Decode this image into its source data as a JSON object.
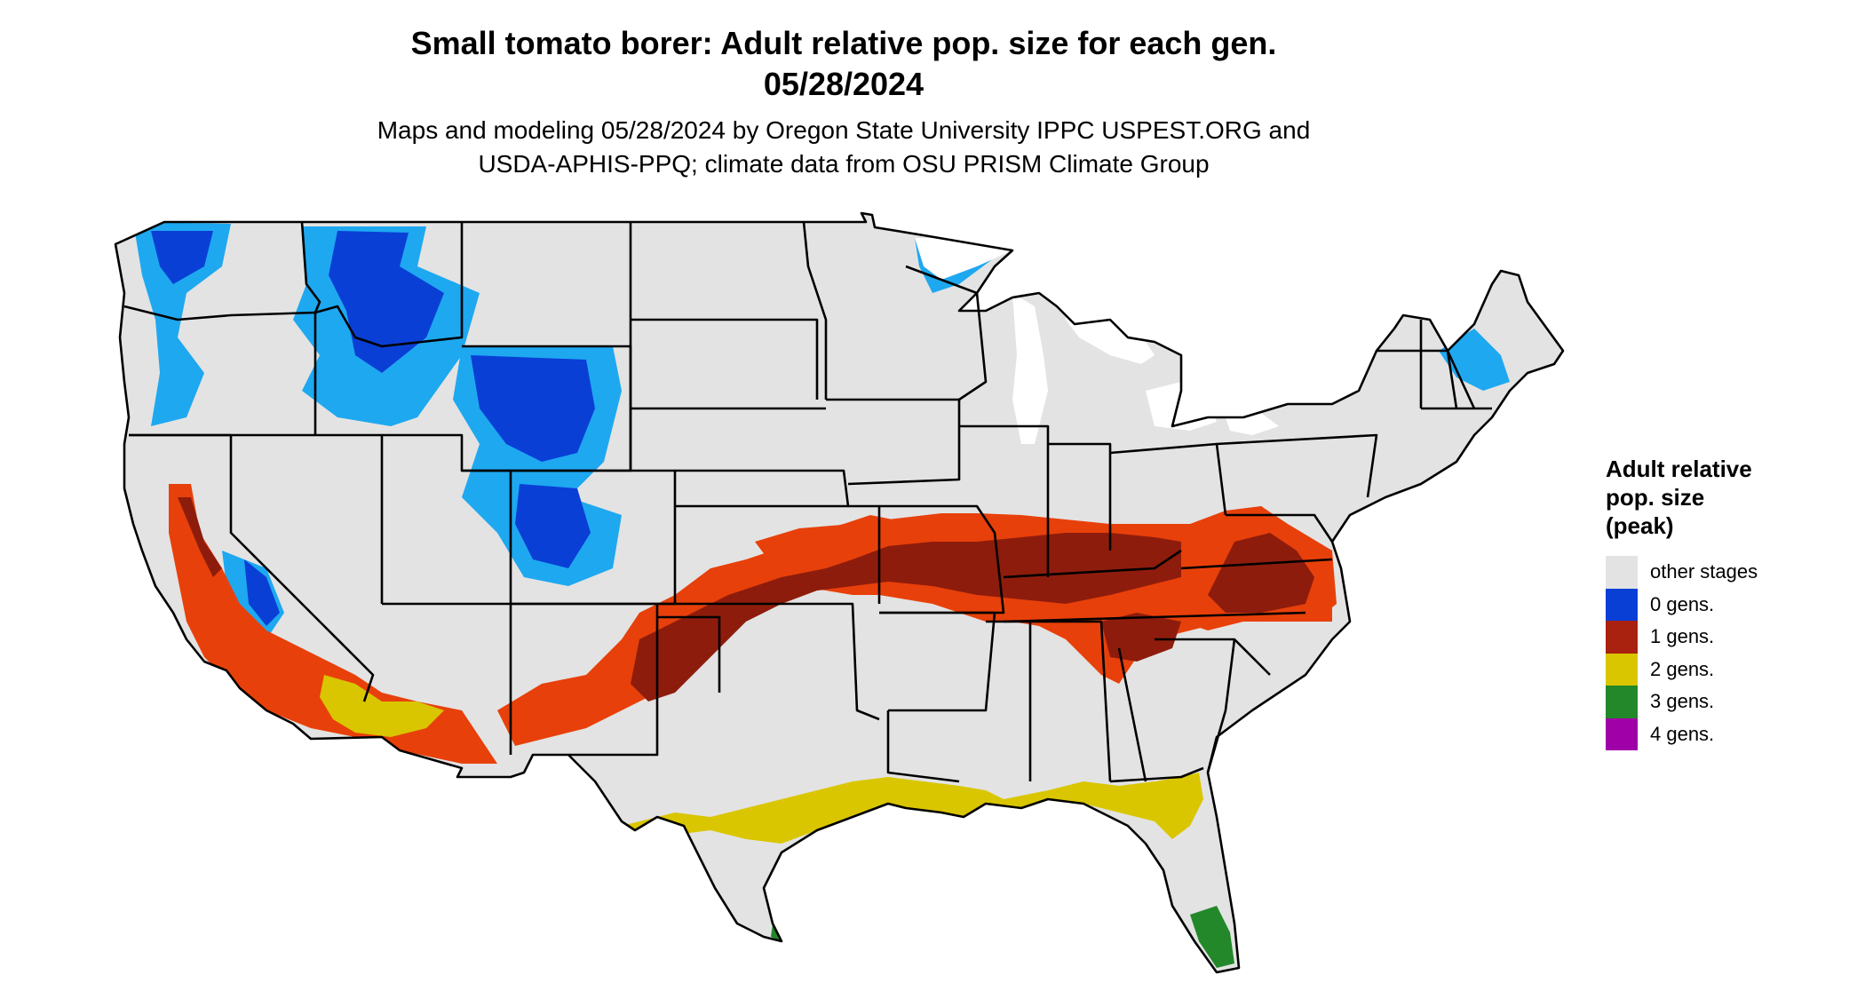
{
  "title": {
    "line1": "Small tomato borer: Adult relative pop. size for each gen.",
    "line2": "05/28/2024"
  },
  "subtitle": {
    "line1": "Maps and modeling 05/28/2024 by Oregon State University IPPC USPEST.ORG and",
    "line2": "USDA-APHIS-PPQ; climate data from OSU PRISM Climate Group"
  },
  "legend": {
    "title_line1": "Adult relative",
    "title_line2": "pop. size",
    "title_line3": "(peak)",
    "items": [
      {
        "label": "other stages",
        "color": "#e3e3e3"
      },
      {
        "label": "0 gens.",
        "color": "#0a3fd6"
      },
      {
        "label": "1 gens.",
        "color": "#a8220f"
      },
      {
        "label": "2 gens.",
        "color": "#d9c600"
      },
      {
        "label": "3 gens.",
        "color": "#22882a"
      },
      {
        "label": "4 gens.",
        "color": "#a000a8"
      }
    ]
  },
  "map": {
    "colors": {
      "land": "#e3e3e3",
      "border": "#000000",
      "cold_dark": "#0a3fd6",
      "cold_light": "#1ea8f0",
      "gen1_dark": "#8e1c0c",
      "gen1_light": "#e8400a",
      "gen2": "#d9c600",
      "gen3": "#22882a"
    }
  }
}
